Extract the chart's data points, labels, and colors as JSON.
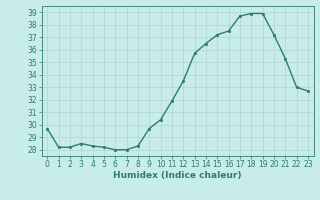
{
  "x": [
    0,
    1,
    2,
    3,
    4,
    5,
    6,
    7,
    8,
    9,
    10,
    11,
    12,
    13,
    14,
    15,
    16,
    17,
    18,
    19,
    20,
    21,
    22,
    23
  ],
  "y": [
    29.7,
    28.2,
    28.2,
    28.5,
    28.3,
    28.2,
    28.0,
    28.0,
    28.3,
    29.7,
    30.4,
    31.9,
    33.5,
    35.7,
    36.5,
    37.2,
    37.5,
    38.7,
    38.9,
    38.9,
    37.2,
    35.3,
    33.0,
    32.7
  ],
  "line_color": "#2e7d6e",
  "bg_color": "#c8ece8",
  "grid_color": "#b0d4cf",
  "ylim": [
    27.5,
    39.5
  ],
  "xlim": [
    -0.5,
    23.5
  ],
  "yticks": [
    28,
    29,
    30,
    31,
    32,
    33,
    34,
    35,
    36,
    37,
    38,
    39
  ],
  "xticks": [
    0,
    1,
    2,
    3,
    4,
    5,
    6,
    7,
    8,
    9,
    10,
    11,
    12,
    13,
    14,
    15,
    16,
    17,
    18,
    19,
    20,
    21,
    22,
    23
  ],
  "xlabel": "Humidex (Indice chaleur)",
  "linewidth": 1.0,
  "markersize": 3.5,
  "tick_fontsize": 5.5,
  "xlabel_fontsize": 6.5
}
